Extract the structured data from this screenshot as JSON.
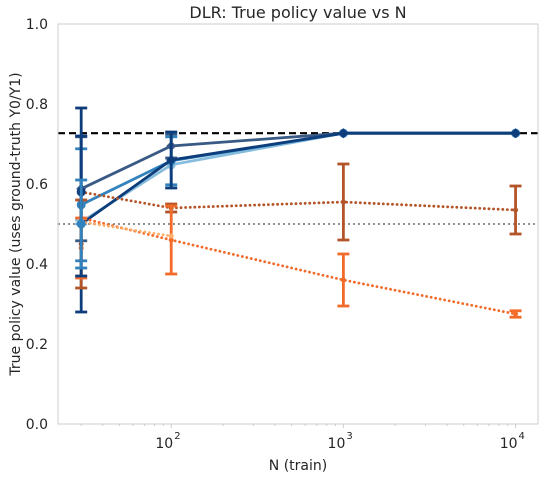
{
  "chart_data": {
    "type": "line",
    "title": "DLR: True policy value vs N",
    "xlabel": "N (train)",
    "ylabel": "True policy value (uses ground-truth Y0/Y1)",
    "xscale": "log",
    "xlim": [
      22,
      13500
    ],
    "ylim": [
      0,
      1
    ],
    "yticks": [
      "0.0",
      "0.2",
      "0.4",
      "0.6",
      "0.8",
      "1.0"
    ],
    "xticks": [
      {
        "value": 100,
        "base": "10",
        "exp": "2"
      },
      {
        "value": 1000,
        "base": "10",
        "exp": "3"
      },
      {
        "value": 10000,
        "base": "10",
        "exp": "4"
      }
    ],
    "grid": false,
    "reference_lines": [
      {
        "y": 0.727,
        "style": "dashed",
        "color": "#000000"
      },
      {
        "y": 0.5,
        "style": "dotted",
        "color": "#808080"
      }
    ],
    "series": [
      {
        "color": "#86bcdd",
        "linestyle": "solid",
        "marker": "circle",
        "x": [
          30,
          100,
          1000,
          10000
        ],
        "y": [
          0.505,
          0.648,
          0.727,
          0.727
        ],
        "err": [
          0.005,
          0.0,
          0.0,
          0.0
        ]
      },
      {
        "color": "#3182bd",
        "linestyle": "solid",
        "marker": "circle",
        "x": [
          30,
          100,
          1000,
          10000
        ],
        "y": [
          0.548,
          0.658,
          0.727,
          0.727
        ],
        "err": [
          0.14,
          0.06,
          0.0,
          0.0
        ]
      },
      {
        "color": "#3a5a86",
        "linestyle": "solid",
        "marker": "diamond",
        "x": [
          30,
          100,
          1000,
          10000
        ],
        "y": [
          0.588,
          0.695,
          0.727,
          0.727
        ],
        "err": [
          0.13,
          0.03,
          0.0,
          0.0
        ]
      },
      {
        "color": "#0d3d7a",
        "linestyle": "solid",
        "marker": "diamond",
        "x": [
          30,
          100,
          1000,
          10000
        ],
        "y": [
          0.5,
          0.66,
          0.727,
          0.727
        ],
        "err": [
          0.22,
          0.07,
          0.0,
          0.0
        ]
      },
      {
        "color": "#b35528",
        "linestyle": "dotted",
        "marker": "circle",
        "x": [
          30,
          100,
          1000,
          10000
        ],
        "y": [
          0.58,
          0.54,
          0.555,
          0.535
        ],
        "err": [
          0.0,
          0.01,
          0.095,
          0.06
        ]
      },
      {
        "color": "#f26b2a",
        "linestyle": "dotted",
        "marker": "circle",
        "x": [
          30,
          100,
          1000,
          10000
        ],
        "y": [
          0.515,
          0.46,
          0.36,
          0.275
        ],
        "err": [
          0.0,
          0.085,
          0.065,
          0.008
        ]
      },
      {
        "color": "#fdae6b",
        "linestyle": "dotted",
        "marker": "circle",
        "x": [
          30,
          100
        ],
        "y": [
          0.505,
          0.47
        ],
        "err": [
          0.0,
          0.0
        ]
      },
      {
        "color": "#b35528",
        "linestyle": "dotted",
        "marker": "circle",
        "x": [
          30
        ],
        "y": [
          0.45
        ],
        "err": [
          0.11
        ]
      },
      {
        "color": "#f26b2a",
        "linestyle": "dotted",
        "marker": "circle",
        "x": [
          30
        ],
        "y": [
          0.44
        ],
        "err": [
          0.075
        ]
      },
      {
        "color": "#0d3d7a",
        "linestyle": "solid",
        "marker": "circle",
        "x": [
          30
        ],
        "y": [
          0.58
        ],
        "err": [
          0.21
        ]
      },
      {
        "color": "#3182bd",
        "linestyle": "solid",
        "marker": "circle",
        "x": [
          30
        ],
        "y": [
          0.5
        ],
        "err": [
          0.11
        ]
      }
    ]
  }
}
